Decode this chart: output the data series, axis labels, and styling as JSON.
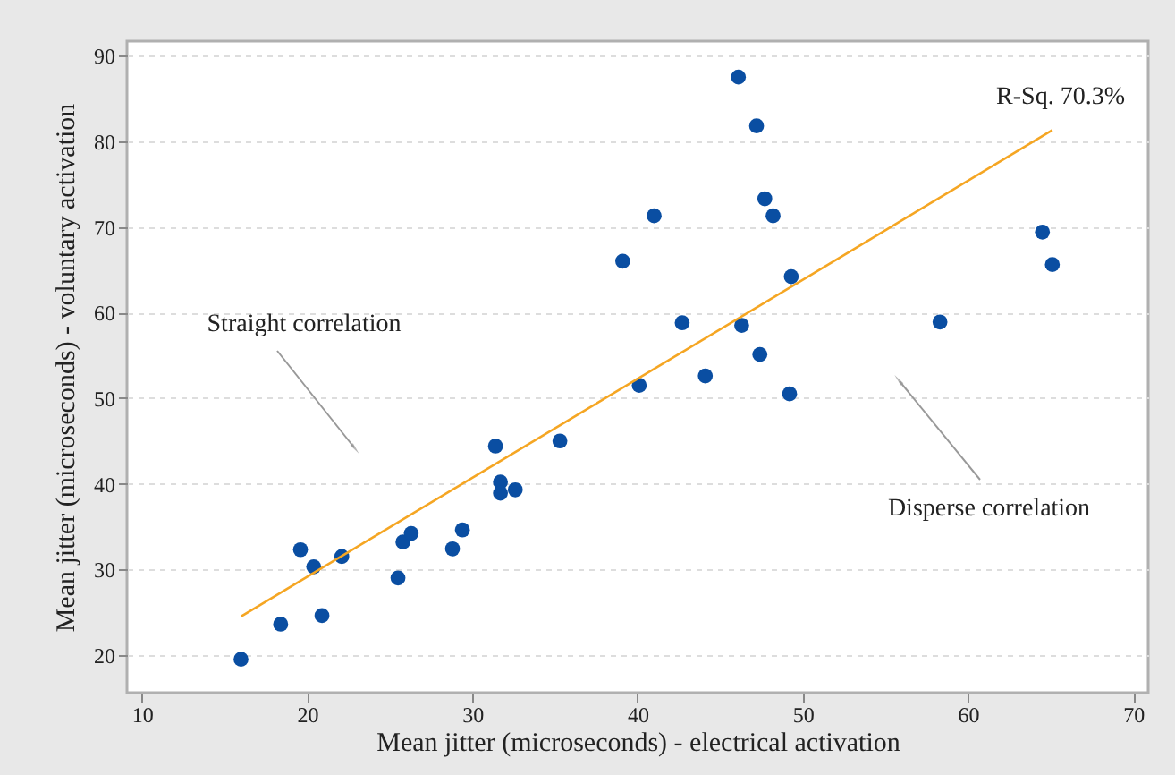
{
  "chart_data": {
    "type": "scatter",
    "xlabel": "Mean jitter (microseconds) - electrical activation",
    "ylabel": "Mean jitter (microseconds) - voluntary activation",
    "xlim": [
      9.1,
      70.9
    ],
    "ylim": [
      15.6,
      91.7
    ],
    "xticks": [
      10,
      20,
      30,
      40,
      50,
      60,
      70
    ],
    "yticks": [
      20,
      30,
      40,
      50,
      60,
      70,
      80,
      90
    ],
    "grid": "y",
    "series": [
      {
        "marker": "circle",
        "color": "#0a4ea2",
        "x": [
          16.0,
          18.4,
          19.6,
          20.4,
          20.9,
          22.1,
          25.5,
          25.8,
          26.3,
          28.8,
          29.4,
          31.4,
          31.7,
          31.7,
          32.6,
          35.3,
          39.1,
          40.1,
          41.0,
          42.7,
          44.1,
          46.1,
          46.3,
          47.2,
          47.7,
          47.4,
          48.2,
          49.3,
          49.2,
          58.3,
          64.5,
          65.1
        ],
        "values": [
          19.5,
          23.6,
          32.3,
          30.3,
          24.6,
          31.5,
          29.0,
          33.2,
          34.2,
          32.4,
          34.6,
          44.4,
          40.2,
          38.9,
          39.3,
          45.0,
          66.0,
          51.5,
          71.3,
          58.8,
          52.6,
          87.5,
          58.5,
          81.8,
          73.3,
          55.1,
          71.3,
          64.2,
          50.5,
          58.9,
          69.4,
          65.6
        ]
      },
      {
        "type": "line",
        "color": "#f5a623",
        "x": [
          16.0,
          65.1
        ],
        "values": [
          24.5,
          81.3
        ]
      }
    ],
    "annotations": [
      "Straight correlation",
      "Disperse correlation",
      "R-Sq. 70.3%"
    ]
  }
}
